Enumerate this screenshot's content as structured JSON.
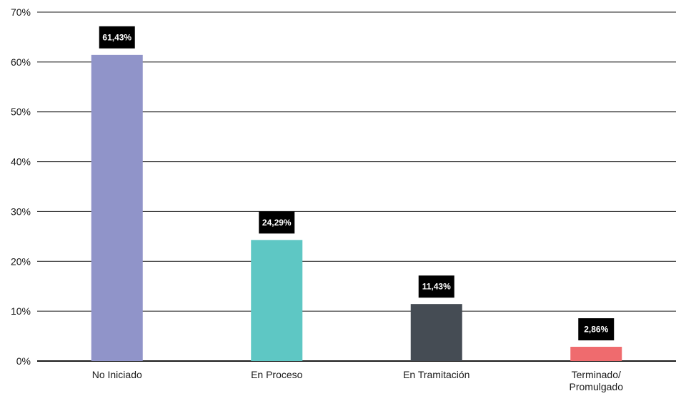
{
  "chart_data": {
    "type": "bar",
    "title": "",
    "xlabel": "",
    "ylabel": "",
    "ylim": [
      0,
      70
    ],
    "yticks": [
      0,
      10,
      20,
      30,
      40,
      50,
      60,
      70
    ],
    "ytick_labels": [
      "0%",
      "10%",
      "20%",
      "30%",
      "40%",
      "50%",
      "60%",
      "70%"
    ],
    "grid": true,
    "categories": [
      [
        "No Iniciado"
      ],
      [
        "En Proceso"
      ],
      [
        "En Tramitación"
      ],
      [
        "Terminado/",
        "Promulgado"
      ]
    ],
    "values": [
      61.43,
      24.29,
      11.43,
      2.86
    ],
    "data_labels": [
      "61,43%",
      "24,29%",
      "11,43%",
      "2,86%"
    ],
    "colors": [
      "#9094c9",
      "#5ec7c4",
      "#454c54",
      "#ef6b6e"
    ],
    "data_label_bg": "#000000"
  }
}
